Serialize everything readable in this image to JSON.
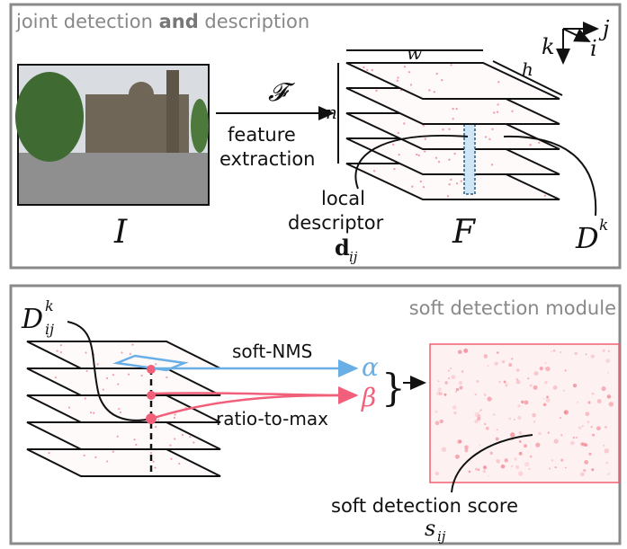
{
  "panel_1": {
    "title_parts": [
      "joint detection ",
      "and",
      " description"
    ],
    "axes": {
      "j": "j",
      "k": "k",
      "i": "i"
    },
    "image_label": "I",
    "arrow_symbol": "𝓕",
    "arrow_caption": [
      "feature",
      "extraction"
    ],
    "dims": {
      "width": "w",
      "height": "h",
      "channels": "n"
    },
    "descriptor_caption": [
      "local",
      "descriptor"
    ],
    "descriptor_symbol": {
      "base": "d",
      "subscript": "ij"
    },
    "feature_map_label": "F",
    "slice_label": {
      "base": "D",
      "superscript": "k"
    }
  },
  "panel_2": {
    "title": "soft detection module",
    "input_label": {
      "base": "D",
      "superscript": "k",
      "subscript": "ij"
    },
    "operations": [
      {
        "name": "soft-NMS",
        "symbol": "α"
      },
      {
        "name": "ratio-to-max",
        "symbol": "β"
      }
    ],
    "output_caption": "soft detection score",
    "output_symbol": {
      "base": "s",
      "subscript": "ij"
    }
  }
}
